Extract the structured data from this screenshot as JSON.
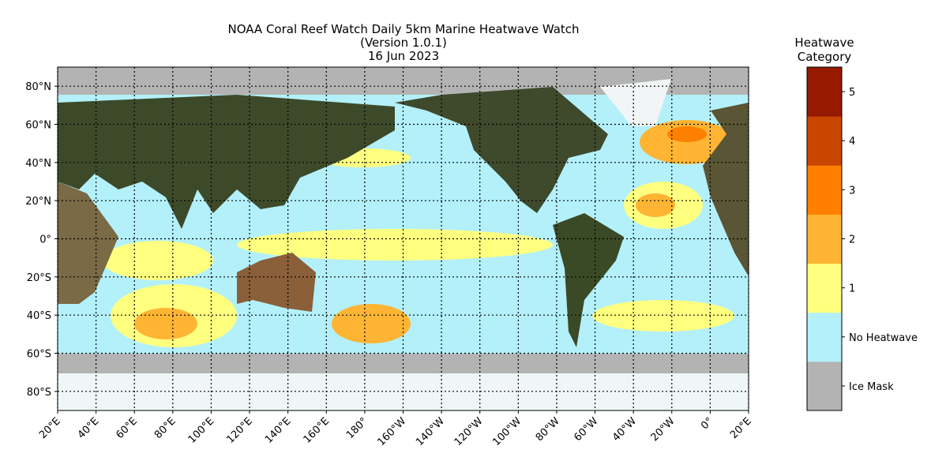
{
  "chart_data": {
    "type": "map",
    "title": [
      "NOAA Coral Reef Watch Daily 5km Marine Heatwave Watch",
      "(Version 1.0.1)",
      "16 Jun 2023"
    ],
    "xlim": [
      20,
      380
    ],
    "ylim": [
      -90,
      90
    ],
    "grid": true,
    "xticks": [
      {
        "value": 20,
        "label": "20°E"
      },
      {
        "value": 40,
        "label": "40°E"
      },
      {
        "value": 60,
        "label": "60°E"
      },
      {
        "value": 80,
        "label": "80°E"
      },
      {
        "value": 100,
        "label": "100°E"
      },
      {
        "value": 120,
        "label": "120°E"
      },
      {
        "value": 140,
        "label": "140°E"
      },
      {
        "value": 160,
        "label": "160°E"
      },
      {
        "value": 180,
        "label": "180°"
      },
      {
        "value": 200,
        "label": "160°W"
      },
      {
        "value": 220,
        "label": "140°W"
      },
      {
        "value": 240,
        "label": "120°W"
      },
      {
        "value": 260,
        "label": "100°W"
      },
      {
        "value": 280,
        "label": "80°W"
      },
      {
        "value": 300,
        "label": "60°W"
      },
      {
        "value": 320,
        "label": "40°W"
      },
      {
        "value": 340,
        "label": "20°W"
      },
      {
        "value": 360,
        "label": "0°"
      },
      {
        "value": 380,
        "label": "20°E"
      }
    ],
    "yticks": [
      {
        "value": 80,
        "label": "80°N"
      },
      {
        "value": 60,
        "label": "60°N"
      },
      {
        "value": 40,
        "label": "40°N"
      },
      {
        "value": 20,
        "label": "20°N"
      },
      {
        "value": 0,
        "label": "0°"
      },
      {
        "value": -20,
        "label": "20°S"
      },
      {
        "value": -40,
        "label": "40°S"
      },
      {
        "value": -60,
        "label": "60°S"
      },
      {
        "value": -80,
        "label": "80°S"
      }
    ],
    "colorbar": {
      "title": [
        "Heatwave",
        "Category"
      ],
      "categories": [
        "Ice Mask",
        "No Heatwave",
        "1",
        "2",
        "3",
        "4",
        "5"
      ],
      "colors": [
        "#b3b3b3",
        "#b3f0fa",
        "#ffff80",
        "#ffb433",
        "#ff8000",
        "#c84600",
        "#961900"
      ]
    }
  }
}
